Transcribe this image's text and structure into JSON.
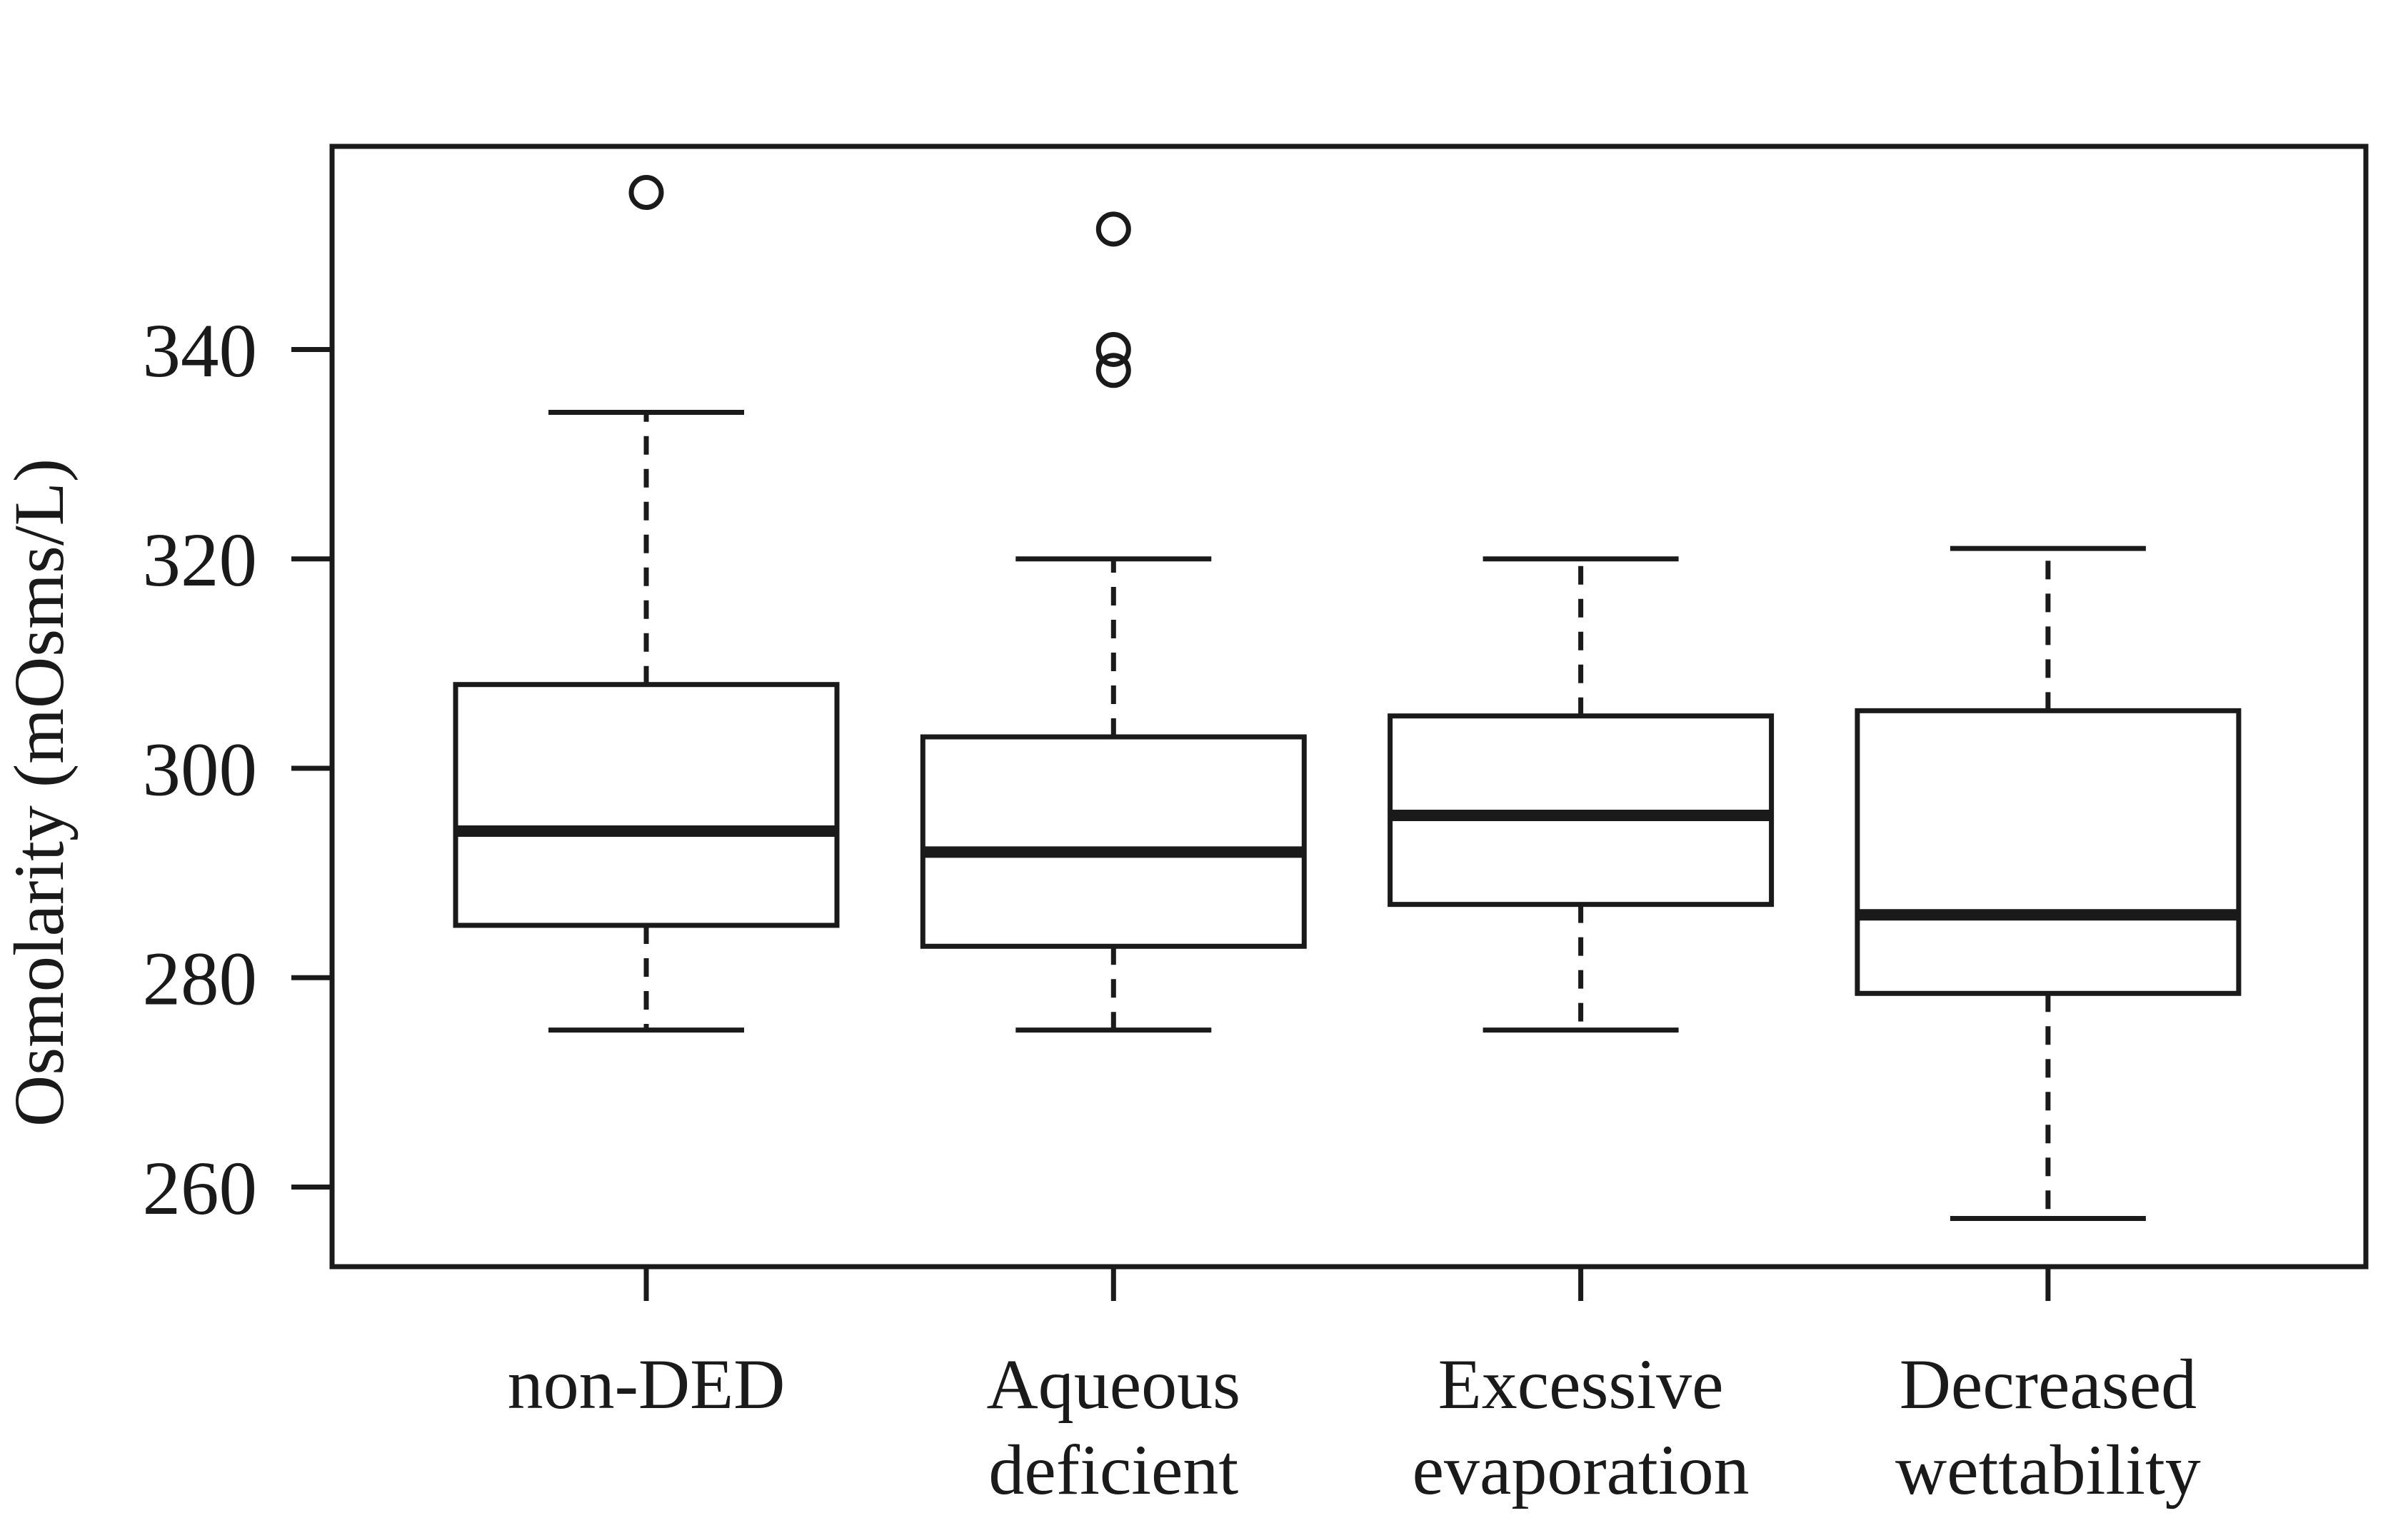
{
  "chart_data": {
    "type": "box",
    "title": "",
    "xlabel": "",
    "ylabel": "Osmolarity (mOsms/L)",
    "ylim": [
      252.4,
      359.4
    ],
    "yticks": [
      260,
      280,
      300,
      320,
      340
    ],
    "grid": false,
    "legend": "none",
    "categories": [
      "non-DED",
      "Aqueous deficient",
      "Excessive evaporation",
      "Decreased wettability"
    ],
    "category_label_lines": [
      [
        "non-DED"
      ],
      [
        "Aqueous",
        "deficient"
      ],
      [
        "Excessive",
        "evaporation"
      ],
      [
        "Decreased",
        "wettability"
      ]
    ],
    "series": [
      {
        "name": "non-DED",
        "whisker_low": 275,
        "q1": 285,
        "median": 294,
        "q3": 308,
        "whisker_high": 334,
        "outliers": [
          355
        ]
      },
      {
        "name": "Aqueous deficient",
        "whisker_low": 275,
        "q1": 283,
        "median": 292,
        "q3": 303,
        "whisker_high": 320,
        "outliers": [
          338,
          340,
          351.5
        ]
      },
      {
        "name": "Excessive evaporation",
        "whisker_low": 275,
        "q1": 287,
        "median": 295.5,
        "q3": 305,
        "whisker_high": 320,
        "outliers": []
      },
      {
        "name": "Decreased wettability",
        "whisker_low": 257,
        "q1": 278.5,
        "median": 286,
        "q3": 305.5,
        "whisker_high": 321,
        "outliers": []
      }
    ],
    "colors": {
      "stroke": "#1a1a1a",
      "box_fill": "#ffffff",
      "background": "#ffffff"
    }
  }
}
